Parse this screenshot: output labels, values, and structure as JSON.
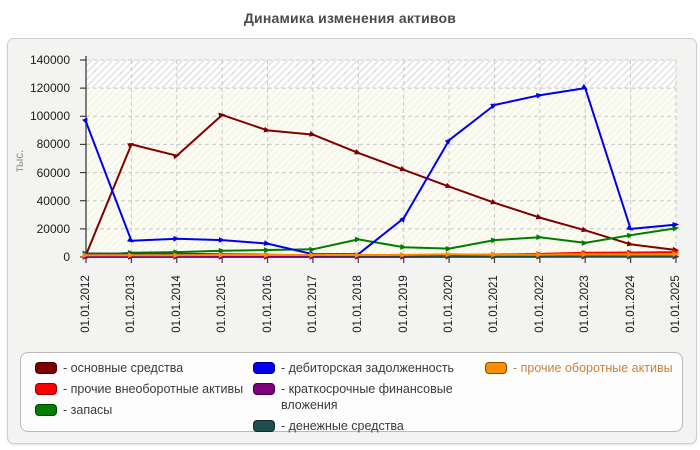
{
  "title": "Динамика изменения активов",
  "y_axis": {
    "title": "тыс.",
    "tick_labels": [
      "0",
      "20000",
      "40000",
      "60000",
      "80000",
      "100000",
      "120000",
      "140000"
    ]
  },
  "x_axis": {
    "tick_labels": [
      "01.01.2012",
      "01.01.2013",
      "01.01.2014",
      "01.01.2015",
      "01.01.2016",
      "01.01.2017",
      "01.01.2018",
      "01.01.2019",
      "01.01.2020",
      "01.01.2021",
      "01.01.2022",
      "01.01.2023",
      "01.01.2024",
      "01.01.2025"
    ]
  },
  "legend": {
    "columns": [
      [
        {
          "label": "- основные средства",
          "color": "#7f0000"
        },
        {
          "label": "- прочие внеоборотные активы",
          "color": "#ff0000"
        },
        {
          "label": "- запасы",
          "color": "#007d00"
        }
      ],
      [
        {
          "label": "- дебиторская задолженность",
          "color": "#0000ee"
        },
        {
          "label": "- краткосрочные финансовые вложения",
          "color": "#7d007d"
        },
        {
          "label": "- денежные средства",
          "color": "#1f4e4e"
        }
      ],
      [
        {
          "label": "- прочие оборотные активы",
          "color": "#ff8c00",
          "text_color": "#c8823c"
        }
      ]
    ]
  },
  "chart_data": {
    "type": "line",
    "title": "Динамика изменения активов",
    "xlabel": "",
    "ylabel": "тыс.",
    "ylim": [
      0,
      140000
    ],
    "grid": true,
    "legend_position": "bottom",
    "x": [
      "01.01.2012",
      "01.01.2013",
      "01.01.2014",
      "01.01.2015",
      "01.01.2016",
      "01.01.2017",
      "01.01.2018",
      "01.01.2019",
      "01.01.2020",
      "01.01.2021",
      "01.01.2022",
      "01.01.2023",
      "01.01.2024",
      "01.01.2025"
    ],
    "series": [
      {
        "name": "основные средства",
        "color": "#7f0000",
        "values": [
          1500,
          80000,
          72000,
          101000,
          90000,
          87000,
          74000,
          62000,
          50000,
          38500,
          28000,
          19000,
          9000,
          5000
        ]
      },
      {
        "name": "прочие внеоборотные активы",
        "color": "#ff0000",
        "values": [
          500,
          600,
          700,
          700,
          800,
          900,
          1000,
          1100,
          1500,
          1800,
          2200,
          3000,
          3200,
          3500
        ]
      },
      {
        "name": "запасы",
        "color": "#007d00",
        "values": [
          1000,
          3000,
          3500,
          4500,
          5000,
          5500,
          12500,
          7000,
          6000,
          12000,
          14000,
          10000,
          15500,
          20500
        ]
      },
      {
        "name": "дебиторская задолженность",
        "color": "#0000ee",
        "values": [
          96000,
          11500,
          13000,
          12000,
          9500,
          2000,
          2000,
          27500,
          83000,
          108000,
          115000,
          120000,
          20000,
          23000
        ]
      },
      {
        "name": "краткосрочные финансовые вложения",
        "color": "#7d007d",
        "values": [
          100,
          100,
          100,
          100,
          100,
          100,
          100,
          100,
          200,
          200,
          200,
          300,
          300,
          300
        ]
      },
      {
        "name": "денежные средства",
        "color": "#1f4e4e",
        "values": [
          2500,
          2400,
          2300,
          2000,
          1600,
          1200,
          1000,
          900,
          700,
          600,
          500,
          500,
          500,
          600
        ]
      },
      {
        "name": "прочие оборотные активы",
        "color": "#ff8c00",
        "values": [
          1200,
          1300,
          1300,
          1400,
          1400,
          1400,
          1400,
          1500,
          1900,
          1600,
          1600,
          1900,
          1900,
          2100
        ]
      }
    ]
  }
}
